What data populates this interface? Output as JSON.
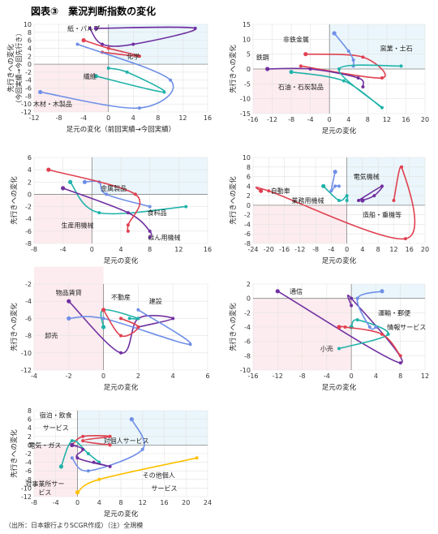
{
  "figure": {
    "title": "図表③　業況判断指数の変化",
    "footer": "（出所：日本銀行よりSCGR作成）（注）全規模"
  },
  "chart_data": [
    {
      "type": "line",
      "xlabel": "足元の変化（前回実績→今回実績）",
      "ylabel": "先行きへの変化",
      "ylabel2": "（今回実績→今回先行き）",
      "xlim": [
        -12,
        16
      ],
      "ylim": [
        -12,
        10
      ],
      "xticks": [
        -12,
        -8,
        -4,
        0,
        4,
        8,
        12,
        16
      ],
      "yticks": [
        -12,
        -10,
        -8,
        -6,
        -4,
        -2,
        0,
        2,
        4,
        6,
        8,
        10
      ],
      "series": [
        {
          "name": "紙・パルプ",
          "color": "#7030a0",
          "points": [
            [
              -2,
              9
            ],
            [
              14,
              9
            ],
            [
              4,
              5
            ],
            [
              -1,
              5
            ],
            [
              -3,
              9
            ]
          ]
        },
        {
          "name": "化学",
          "color": "#e04050",
          "points": [
            [
              -4,
              6
            ],
            [
              0,
              4
            ],
            [
              5,
              2
            ],
            [
              -1,
              3
            ]
          ]
        },
        {
          "name": "繊維",
          "color": "#20b2aa",
          "points": [
            [
              -2,
              -3
            ],
            [
              9,
              -7
            ],
            [
              3,
              -2
            ],
            [
              0,
              -1
            ]
          ]
        },
        {
          "name": "木材・木製品",
          "color": "#6f8fe8",
          "points": [
            [
              -11,
              -7
            ],
            [
              5,
              -11
            ],
            [
              10,
              -4
            ],
            [
              -5,
              5
            ]
          ]
        }
      ],
      "labels": [
        {
          "text": "紙・パルプ",
          "xy": [
            -4,
            9
          ]
        },
        {
          "text": "化学",
          "xy": [
            4,
            2
          ]
        },
        {
          "text": "繊維",
          "xy": [
            -3,
            -3
          ]
        },
        {
          "text": "木材・木製品",
          "xy": [
            -9,
            -10
          ]
        }
      ]
    },
    {
      "type": "line",
      "xlabel": "足元の変化",
      "ylabel": "先行きへの変化",
      "xlim": [
        -16,
        20
      ],
      "ylim": [
        -15,
        15
      ],
      "xticks": [
        -16,
        -12,
        -8,
        -4,
        0,
        4,
        8,
        12,
        16,
        20
      ],
      "yticks": [
        -15,
        -10,
        -5,
        0,
        5,
        10,
        15
      ],
      "series": [
        {
          "name": "非鉄金属",
          "color": "#e04050",
          "points": [
            [
              -5,
              5
            ],
            [
              7,
              4
            ],
            [
              11,
              -3
            ],
            [
              -6,
              1
            ]
          ]
        },
        {
          "name": "窯業・土石",
          "color": "#6f8fe8",
          "points": [
            [
              1,
              12
            ],
            [
              4,
              6
            ],
            [
              5,
              3
            ],
            [
              5,
              1
            ]
          ]
        },
        {
          "name": "鉄鋼",
          "color": "#7030a0",
          "points": [
            [
              -13,
              0
            ],
            [
              -4,
              0
            ],
            [
              6,
              -3
            ],
            [
              7,
              -6
            ]
          ]
        },
        {
          "name": "石油・石炭製品",
          "color": "#20b2aa",
          "points": [
            [
              -8,
              -1
            ],
            [
              3,
              -4
            ],
            [
              11,
              -13
            ],
            [
              2,
              0
            ],
            [
              15,
              1
            ]
          ]
        }
      ],
      "labels": [
        {
          "text": "非鉄金属",
          "xy": [
            -7,
            10
          ]
        },
        {
          "text": "窯業・土石",
          "xy": [
            14,
            7
          ]
        },
        {
          "text": "鉄鋼",
          "xy": [
            -14,
            4
          ]
        },
        {
          "text": "石油・石炭製品",
          "xy": [
            -6,
            -6
          ]
        }
      ]
    },
    {
      "type": "line",
      "xlabel": "足元の変化",
      "ylabel": "先行きへの変化",
      "xlim": [
        -8,
        16
      ],
      "ylim": [
        -8,
        6
      ],
      "xticks": [
        -8,
        -4,
        0,
        4,
        8,
        12,
        16
      ],
      "yticks": [
        -8,
        -6,
        -4,
        -2,
        0,
        2,
        4,
        6
      ],
      "series": [
        {
          "name": "金属製品",
          "color": "#6f8fe8",
          "points": [
            [
              -1,
              2
            ],
            [
              1,
              2
            ],
            [
              2,
              0
            ],
            [
              8,
              -2
            ]
          ]
        },
        {
          "name": "食料品",
          "color": "#20b2aa",
          "points": [
            [
              -3,
              2
            ],
            [
              1,
              -3
            ],
            [
              13,
              -2
            ]
          ]
        },
        {
          "name": "はん用機械",
          "color": "#7030a0",
          "points": [
            [
              -4,
              1
            ],
            [
              5,
              -3
            ],
            [
              8,
              -6
            ],
            [
              8,
              -7
            ]
          ]
        },
        {
          "name": "生産用機械",
          "color": "#e04050",
          "points": [
            [
              -6,
              4
            ],
            [
              6,
              0
            ],
            [
              5,
              -5
            ],
            [
              5,
              -6
            ]
          ]
        }
      ],
      "labels": [
        {
          "text": "金属製品",
          "xy": [
            3,
            1
          ]
        },
        {
          "text": "食料品",
          "xy": [
            9,
            -3
          ]
        },
        {
          "text": "生産用機械",
          "xy": [
            -2,
            -5
          ]
        },
        {
          "text": "はん用機械",
          "xy": [
            10,
            -7
          ]
        }
      ]
    },
    {
      "type": "line",
      "xlabel": "足元の変化",
      "ylabel": "先行きへの変化",
      "xlim": [
        -24,
        20
      ],
      "ylim": [
        -8,
        10
      ],
      "xticks": [
        -24,
        -20,
        -16,
        -12,
        -8,
        -4,
        0,
        4,
        8,
        12,
        16,
        20
      ],
      "yticks": [
        -8,
        -6,
        -4,
        -2,
        0,
        2,
        4,
        6,
        8,
        10
      ],
      "series": [
        {
          "name": "自動車",
          "color": "#e04050",
          "points": [
            [
              -22,
              3
            ],
            [
              -20,
              3
            ],
            [
              15,
              -7
            ],
            [
              14,
              8
            ],
            [
              12,
              1
            ]
          ]
        },
        {
          "name": "電気機械",
          "color": "#6f8fe8",
          "points": [
            [
              -3,
              7
            ],
            [
              -4,
              3
            ],
            [
              -3,
              4
            ],
            [
              -2,
              4
            ]
          ]
        },
        {
          "name": "業務用機械",
          "color": "#20b2aa",
          "points": [
            [
              -6,
              4
            ],
            [
              -2,
              1
            ],
            [
              0,
              2
            ],
            [
              0,
              1
            ]
          ]
        },
        {
          "name": "造船・重機等",
          "color": "#7030a0",
          "points": [
            [
              4,
              1
            ],
            [
              7,
              2
            ],
            [
              9,
              4
            ],
            [
              3,
              1
            ]
          ]
        }
      ],
      "labels": [
        {
          "text": "自動車",
          "xy": [
            -17,
            3
          ]
        },
        {
          "text": "電気機械",
          "xy": [
            5,
            6
          ]
        },
        {
          "text": "業務用機械",
          "xy": [
            -10,
            1
          ]
        },
        {
          "text": "造船・重機等",
          "xy": [
            9,
            -2
          ]
        }
      ]
    },
    {
      "type": "line",
      "xlabel": "足元の変化",
      "ylabel": "先行きへの変化",
      "xlim": [
        -4,
        6
      ],
      "ylim": [
        -12,
        -2
      ],
      "xticks": [
        -4,
        -2,
        0,
        2,
        4,
        6
      ],
      "yticks": [
        -12,
        -10,
        -8,
        -6,
        -4,
        -2
      ],
      "series": [
        {
          "name": "物品賃貸",
          "color": "#7030a0",
          "points": [
            [
              -2,
              -4
            ],
            [
              1,
              -10
            ],
            [
              2,
              -6
            ],
            [
              4,
              -6
            ],
            [
              2,
              -7
            ]
          ]
        },
        {
          "name": "不動産",
          "color": "#20b2aa",
          "points": [
            [
              0,
              -7
            ],
            [
              0,
              -5
            ],
            [
              2,
              -6
            ],
            [
              1.5,
              -6
            ]
          ]
        },
        {
          "name": "建設",
          "color": "#6f8fe8",
          "points": [
            [
              -2,
              -6
            ],
            [
              0,
              -6
            ],
            [
              5,
              -9
            ],
            [
              2,
              -5
            ]
          ]
        },
        {
          "name": "卸売",
          "color": "#e04050",
          "points": [
            [
              0,
              -5
            ],
            [
              1,
              -8
            ],
            [
              2,
              -7
            ],
            [
              1,
              -6
            ]
          ]
        }
      ],
      "labels": [
        {
          "text": "物品賃貸",
          "xy": [
            -2,
            -3
          ]
        },
        {
          "text": "不動産",
          "xy": [
            1,
            -3.5
          ]
        },
        {
          "text": "建設",
          "xy": [
            3,
            -4
          ]
        },
        {
          "text": "卸売",
          "xy": [
            -3,
            -8
          ]
        }
      ]
    },
    {
      "type": "line",
      "xlabel": "足元の変化",
      "ylabel": "先行きへの変化",
      "xlim": [
        -16,
        12
      ],
      "ylim": [
        -10,
        2
      ],
      "xticks": [
        -16,
        -12,
        -8,
        -4,
        0,
        4,
        8,
        12
      ],
      "yticks": [
        -10,
        -8,
        -6,
        -4,
        -2,
        0,
        2
      ],
      "series": [
        {
          "name": "通信",
          "color": "#7030a0",
          "points": [
            [
              -12,
              1
            ],
            [
              8,
              -9
            ],
            [
              0,
              0
            ],
            [
              0,
              -1
            ]
          ]
        },
        {
          "name": "運輸・郵便",
          "color": "#20b2aa",
          "points": [
            [
              0,
              -4
            ],
            [
              1,
              -3
            ],
            [
              6,
              -5
            ],
            [
              -2,
              -7
            ]
          ]
        },
        {
          "name": "情報サービス",
          "color": "#6f8fe8",
          "points": [
            [
              5,
              1
            ],
            [
              1,
              0
            ],
            [
              3,
              -4
            ],
            [
              4,
              -4
            ]
          ]
        },
        {
          "name": "小売",
          "color": "#e04050",
          "points": [
            [
              -2,
              -4
            ],
            [
              -1,
              -4
            ],
            [
              5,
              -5
            ],
            [
              8,
              -8
            ]
          ]
        }
      ],
      "labels": [
        {
          "text": "通信",
          "xy": [
            -9,
            1
          ]
        },
        {
          "text": "運輸・郵便",
          "xy": [
            7,
            -2
          ]
        },
        {
          "text": "情報サービス",
          "xy": [
            9,
            -4
          ]
        },
        {
          "text": "小売",
          "xy": [
            -4,
            -7
          ]
        }
      ]
    },
    {
      "type": "line",
      "xlabel": "足元の変化",
      "ylabel": "先行きへの変化",
      "xlim": [
        -8,
        24
      ],
      "ylim": [
        -12,
        8
      ],
      "xticks": [
        -8,
        -4,
        0,
        4,
        8,
        12,
        16,
        20,
        24
      ],
      "yticks": [
        -12,
        -10,
        -8,
        -6,
        -4,
        -2,
        0,
        2,
        4,
        6,
        8
      ],
      "series": [
        {
          "name": "宿泊・飲食サービス",
          "color": "#6f8fe8",
          "points": [
            [
              10,
              6
            ],
            [
              12,
              -1
            ],
            [
              2,
              -6
            ],
            [
              -1,
              -3
            ]
          ]
        },
        {
          "name": "対個人サービス",
          "color": "#e04050",
          "points": [
            [
              -1,
              0
            ],
            [
              1,
              2
            ],
            [
              6,
              2
            ],
            [
              1,
              1
            ],
            [
              6,
              0
            ]
          ]
        },
        {
          "name": "電気・ガス",
          "color": "#20b2aa",
          "points": [
            [
              -3,
              -5
            ],
            [
              -1,
              1
            ],
            [
              2,
              -2
            ],
            [
              4,
              -4
            ]
          ]
        },
        {
          "name": "対事業所サービス",
          "color": "#ffc000",
          "points": [
            [
              0,
              -11
            ],
            [
              4,
              -8
            ],
            [
              22,
              -3
            ]
          ]
        },
        {
          "name": "その他",
          "color": "#7030a0",
          "points": [
            [
              -1,
              0
            ],
            [
              1,
              -1
            ],
            [
              0,
              -3
            ],
            [
              6,
              -5
            ],
            [
              3,
              -4
            ]
          ]
        }
      ],
      "labels": [
        {
          "text": "宿泊・飲食",
          "xy": [
            -4,
            7
          ]
        },
        {
          "text": "サービス",
          "xy": [
            -4,
            4
          ]
        },
        {
          "text": "対個人サービス",
          "xy": [
            9,
            1
          ]
        },
        {
          "text": "電気・ガス",
          "xy": [
            -6,
            0
          ]
        },
        {
          "text": "対事業所サー",
          "xy": [
            -6,
            -9
          ]
        },
        {
          "text": "ビス",
          "xy": [
            -6,
            -11
          ]
        },
        {
          "text": "その他個人",
          "xy": [
            15,
            -7
          ]
        },
        {
          "text": "サービス",
          "xy": [
            16,
            -10
          ]
        }
      ]
    }
  ]
}
